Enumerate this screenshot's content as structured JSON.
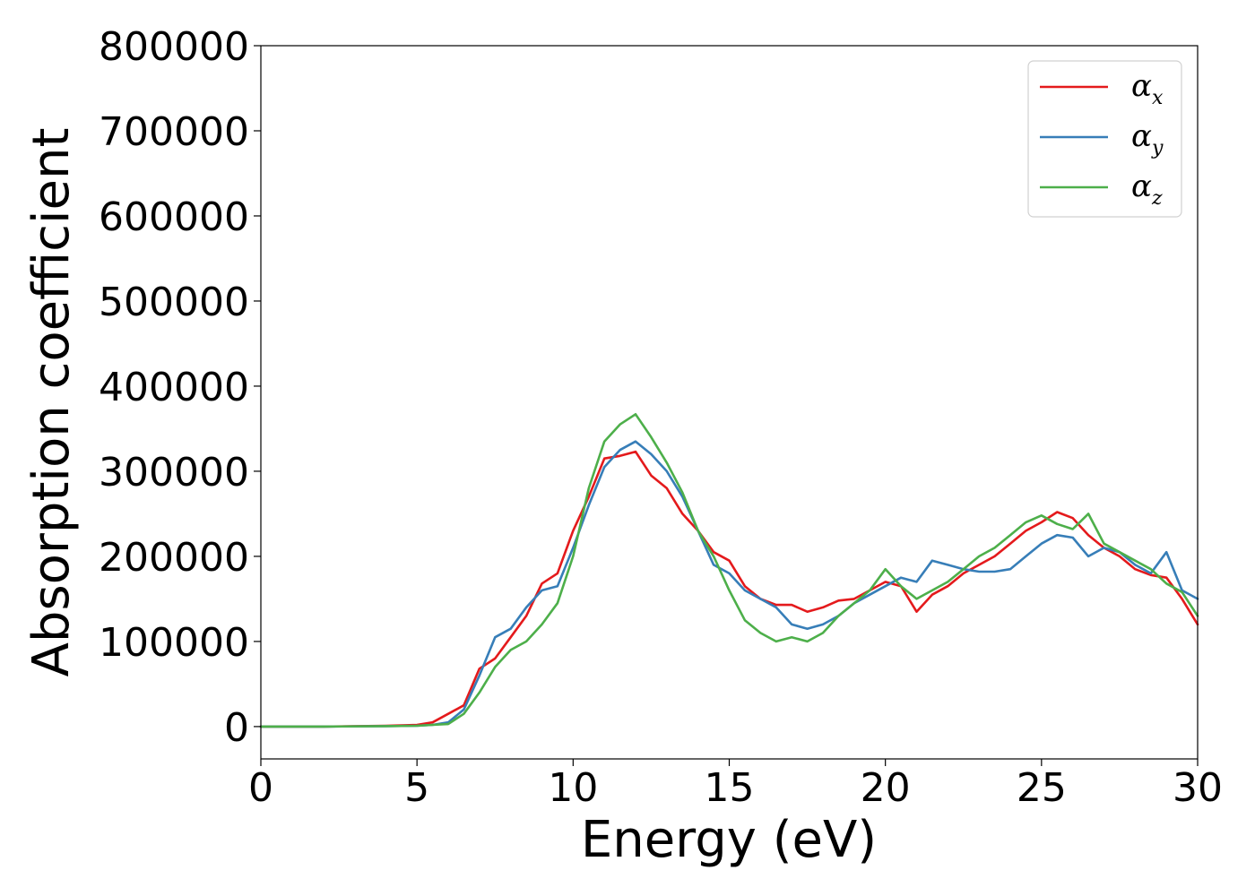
{
  "chart_data": {
    "type": "line",
    "title": "",
    "xlabel": "Energy (eV)",
    "ylabel": "Absorption coefficient",
    "xlim": [
      0,
      30
    ],
    "ylim": [
      -38000,
      800000
    ],
    "xticks": [
      "0",
      "5",
      "10",
      "15",
      "20",
      "25",
      "30"
    ],
    "yticks": [
      "0",
      "100000",
      "200000",
      "300000",
      "400000",
      "500000",
      "600000",
      "700000",
      "800000"
    ],
    "grid": false,
    "legend_position": "top-right",
    "series": [
      {
        "name": "α",
        "subscript": "x",
        "color": "#e41a1c",
        "x": [
          0,
          2,
          4,
          5,
          5.5,
          6,
          6.5,
          7,
          7.5,
          8,
          8.5,
          9,
          9.5,
          10,
          10.5,
          11,
          11.5,
          12,
          12.5,
          13,
          13.5,
          14,
          14.5,
          15,
          15.5,
          16,
          16.5,
          17,
          17.5,
          18,
          18.5,
          19,
          19.5,
          20,
          20.5,
          21,
          21.5,
          22,
          22.5,
          23,
          23.5,
          24,
          24.5,
          25,
          25.5,
          26,
          26.5,
          27,
          27.5,
          28,
          28.5,
          29,
          29.5,
          30
        ],
        "y": [
          0,
          0,
          1000,
          2000,
          5000,
          15000,
          25000,
          68000,
          80000,
          105000,
          130000,
          168000,
          180000,
          230000,
          270000,
          315000,
          318000,
          323000,
          295000,
          280000,
          250000,
          230000,
          205000,
          195000,
          165000,
          150000,
          143000,
          143000,
          135000,
          140000,
          148000,
          150000,
          160000,
          170000,
          165000,
          135000,
          155000,
          165000,
          180000,
          190000,
          200000,
          215000,
          230000,
          240000,
          252000,
          245000,
          225000,
          210000,
          200000,
          185000,
          178000,
          175000,
          150000,
          120000
        ]
      },
      {
        "name": "α",
        "subscript": "y",
        "color": "#377eb8",
        "x": [
          0,
          2,
          4,
          5,
          5.5,
          6,
          6.5,
          7,
          7.5,
          8,
          8.5,
          9,
          9.5,
          10,
          10.5,
          11,
          11.5,
          12,
          12.5,
          13,
          13.5,
          14,
          14.5,
          15,
          15.5,
          16,
          16.5,
          17,
          17.5,
          18,
          18.5,
          19,
          19.5,
          20,
          20.5,
          21,
          21.5,
          22,
          22.5,
          23,
          23.5,
          24,
          24.5,
          25,
          25.5,
          26,
          26.5,
          27,
          27.5,
          28,
          28.5,
          29,
          29.5,
          30
        ],
        "y": [
          0,
          0,
          500,
          1000,
          2000,
          5000,
          20000,
          60000,
          105000,
          115000,
          140000,
          160000,
          165000,
          210000,
          260000,
          305000,
          325000,
          335000,
          320000,
          300000,
          270000,
          230000,
          190000,
          180000,
          160000,
          150000,
          140000,
          120000,
          115000,
          120000,
          130000,
          145000,
          155000,
          165000,
          175000,
          170000,
          195000,
          190000,
          185000,
          182000,
          182000,
          185000,
          200000,
          215000,
          225000,
          222000,
          200000,
          210000,
          205000,
          190000,
          180000,
          205000,
          160000,
          150000
        ]
      },
      {
        "name": "α",
        "subscript": "z",
        "color": "#4daf4a",
        "x": [
          0,
          2,
          4,
          5,
          5.5,
          6,
          6.5,
          7,
          7.5,
          8,
          8.5,
          9,
          9.5,
          10,
          10.5,
          11,
          11.5,
          12,
          12.5,
          13,
          13.5,
          14,
          14.5,
          15,
          15.5,
          16,
          16.5,
          17,
          17.5,
          18,
          18.5,
          19,
          19.5,
          20,
          20.5,
          21,
          21.5,
          22,
          22.5,
          23,
          23.5,
          24,
          24.5,
          25,
          25.5,
          26,
          26.5,
          27,
          27.5,
          28,
          28.5,
          29,
          29.5,
          30
        ],
        "y": [
          0,
          0,
          500,
          1000,
          2000,
          3000,
          15000,
          40000,
          70000,
          90000,
          100000,
          120000,
          145000,
          200000,
          280000,
          335000,
          355000,
          367000,
          340000,
          310000,
          275000,
          230000,
          200000,
          160000,
          125000,
          110000,
          100000,
          105000,
          100000,
          110000,
          130000,
          145000,
          160000,
          185000,
          165000,
          150000,
          160000,
          170000,
          185000,
          200000,
          210000,
          225000,
          240000,
          248000,
          238000,
          232000,
          250000,
          215000,
          205000,
          195000,
          185000,
          168000,
          158000,
          130000
        ]
      }
    ]
  }
}
